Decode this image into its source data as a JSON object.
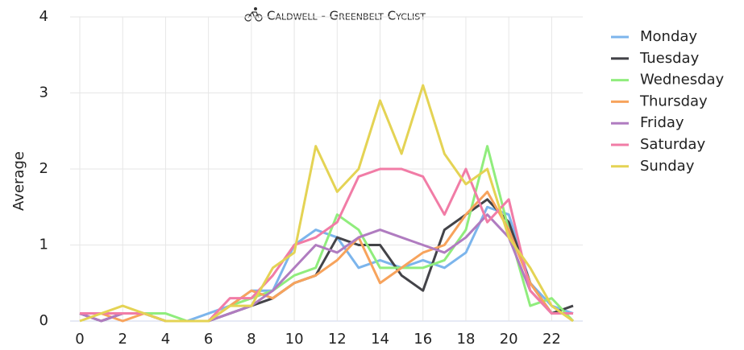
{
  "chart_data": {
    "type": "line",
    "title": "Caldwell - Greenbelt Cyclist",
    "y_label": "Average",
    "x": [
      0,
      1,
      2,
      3,
      4,
      5,
      6,
      7,
      8,
      9,
      10,
      11,
      12,
      13,
      14,
      15,
      16,
      17,
      18,
      19,
      20,
      21,
      22,
      23
    ],
    "xlim": [
      0,
      23
    ],
    "xticks": [
      0,
      2,
      4,
      6,
      8,
      10,
      12,
      14,
      16,
      18,
      20,
      22
    ],
    "ylim": [
      0,
      4
    ],
    "yticks": [
      0,
      1,
      2,
      3,
      4
    ],
    "grid": true,
    "legend": "right",
    "series": [
      {
        "name": "Monday",
        "color": "#7cb5ec",
        "values": [
          0.1,
          0.1,
          0.1,
          0.1,
          0,
          0,
          0.1,
          0.2,
          0.4,
          0.4,
          1.0,
          1.2,
          1.1,
          0.7,
          0.8,
          0.7,
          0.8,
          0.7,
          0.9,
          1.5,
          1.4,
          0.5,
          0.2,
          0.1
        ]
      },
      {
        "name": "Tuesday",
        "color": "#434348",
        "values": [
          0.1,
          0,
          0.1,
          0.1,
          0,
          0,
          0,
          0.1,
          0.2,
          0.3,
          0.5,
          0.6,
          1.1,
          1.0,
          1.0,
          0.6,
          0.4,
          1.2,
          1.4,
          1.6,
          1.3,
          0.5,
          0.1,
          0.2
        ]
      },
      {
        "name": "Wednesday",
        "color": "#90ed7d",
        "values": [
          0.1,
          0.1,
          0.1,
          0.1,
          0.1,
          0,
          0,
          0.2,
          0.3,
          0.4,
          0.6,
          0.7,
          1.4,
          1.2,
          0.7,
          0.7,
          0.7,
          0.8,
          1.2,
          2.3,
          1.2,
          0.2,
          0.3,
          0
        ]
      },
      {
        "name": "Thursday",
        "color": "#f7a35c",
        "values": [
          0.1,
          0.1,
          0,
          0.1,
          0,
          0,
          0,
          0.2,
          0.4,
          0.3,
          0.5,
          0.6,
          0.8,
          1.1,
          0.5,
          0.7,
          0.9,
          1.0,
          1.4,
          1.7,
          1.2,
          0.5,
          0.1,
          0.1
        ]
      },
      {
        "name": "Friday",
        "color": "#b07cc0",
        "values": [
          0.1,
          0,
          0.1,
          0.1,
          0,
          0,
          0,
          0.1,
          0.2,
          0.4,
          0.7,
          1.0,
          0.9,
          1.1,
          1.2,
          1.1,
          1.0,
          0.9,
          1.1,
          1.4,
          1.1,
          0.4,
          0.1,
          0.1
        ]
      },
      {
        "name": "Saturday",
        "color": "#f17ca6",
        "values": [
          0.1,
          0.1,
          0.1,
          0.1,
          0,
          0,
          0,
          0.3,
          0.3,
          0.6,
          1.0,
          1.1,
          1.3,
          1.9,
          2.0,
          2.0,
          1.9,
          1.4,
          2.0,
          1.3,
          1.6,
          0.4,
          0.1,
          0.1
        ]
      },
      {
        "name": "Sunday",
        "color": "#e4d354",
        "values": [
          0,
          0.1,
          0.2,
          0.1,
          0,
          0,
          0,
          0.2,
          0.2,
          0.7,
          0.9,
          2.3,
          1.7,
          2.0,
          2.9,
          2.2,
          3.1,
          2.2,
          1.8,
          2.0,
          1.1,
          0.7,
          0.2,
          0
        ]
      }
    ]
  }
}
